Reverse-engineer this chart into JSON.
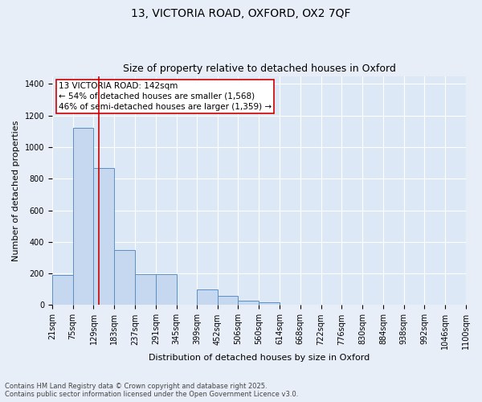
{
  "title1": "13, VICTORIA ROAD, OXFORD, OX2 7QF",
  "title2": "Size of property relative to detached houses in Oxford",
  "xlabel": "Distribution of detached houses by size in Oxford",
  "ylabel": "Number of detached properties",
  "bin_edges": [
    21,
    75,
    129,
    183,
    237,
    291,
    345,
    399,
    452,
    506,
    560,
    614,
    668,
    722,
    776,
    830,
    884,
    938,
    992,
    1046,
    1100
  ],
  "bar_heights": [
    190,
    1120,
    870,
    350,
    195,
    195,
    0,
    100,
    60,
    30,
    20,
    0,
    0,
    0,
    0,
    0,
    0,
    0,
    0,
    0
  ],
  "bar_color": "#c5d8f0",
  "bar_edge_color": "#5a8fc4",
  "property_size": 142,
  "red_line_color": "#cc0000",
  "annotation_text": "13 VICTORIA ROAD: 142sqm\n← 54% of detached houses are smaller (1,568)\n46% of semi-detached houses are larger (1,359) →",
  "annotation_box_color": "#ffffff",
  "annotation_box_edge_color": "#cc0000",
  "ylim": [
    0,
    1450
  ],
  "yticks": [
    0,
    200,
    400,
    600,
    800,
    1000,
    1200,
    1400
  ],
  "bg_color": "#dce8f5",
  "fig_bg_color": "#e8eef8",
  "footnote": "Contains HM Land Registry data © Crown copyright and database right 2025.\nContains public sector information licensed under the Open Government Licence v3.0.",
  "title1_fontsize": 10,
  "title2_fontsize": 9,
  "xlabel_fontsize": 8,
  "ylabel_fontsize": 8,
  "tick_fontsize": 7,
  "annotation_fontsize": 7.5,
  "footnote_fontsize": 6
}
